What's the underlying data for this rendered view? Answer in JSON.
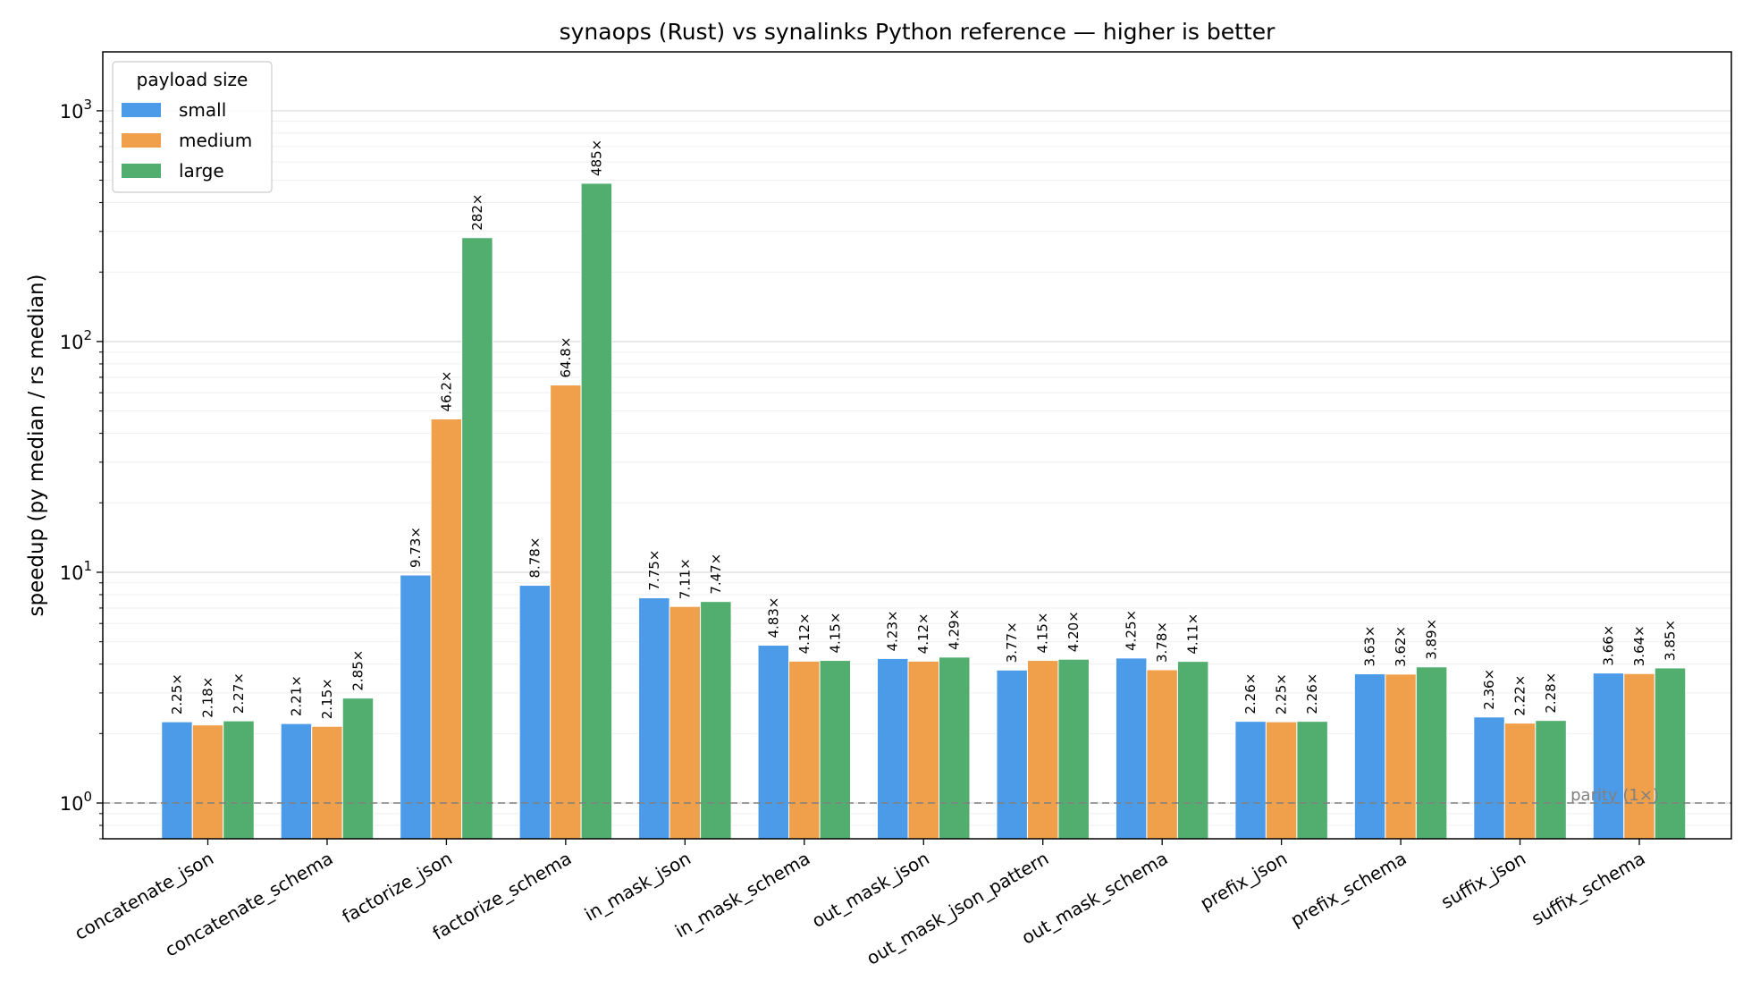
{
  "chart_data": {
    "type": "bar",
    "title": "synaops (Rust) vs synalinks Python reference — higher is better",
    "xlabel": "",
    "ylabel": "speedup  (py median / rs median)",
    "yscale": "log",
    "ylim": [
      0.7,
      1800
    ],
    "yticks": [
      {
        "base": "10",
        "exp": "0",
        "value": 1
      },
      {
        "base": "10",
        "exp": "1",
        "value": 10
      },
      {
        "base": "10",
        "exp": "2",
        "value": 100
      },
      {
        "base": "10",
        "exp": "3",
        "value": 1000
      }
    ],
    "categories": [
      "concatenate_json",
      "concatenate_schema",
      "factorize_json",
      "factorize_schema",
      "in_mask_json",
      "in_mask_schema",
      "out_mask_json",
      "out_mask_json_pattern",
      "out_mask_schema",
      "prefix_json",
      "prefix_schema",
      "suffix_json",
      "suffix_schema"
    ],
    "series": [
      {
        "name": "small",
        "color": "#4c9be8",
        "values": [
          2.25,
          2.21,
          9.73,
          8.78,
          7.75,
          4.83,
          4.23,
          3.77,
          4.25,
          2.26,
          3.63,
          2.36,
          3.66
        ],
        "labels": [
          "2.25×",
          "2.21×",
          "9.73×",
          "8.78×",
          "7.75×",
          "4.83×",
          "4.23×",
          "3.77×",
          "4.25×",
          "2.26×",
          "3.63×",
          "2.36×",
          "3.66×"
        ]
      },
      {
        "name": "medium",
        "color": "#f0a04b",
        "values": [
          2.18,
          2.15,
          46.2,
          64.8,
          7.11,
          4.12,
          4.12,
          4.15,
          3.78,
          2.25,
          3.62,
          2.22,
          3.64
        ],
        "labels": [
          "2.18×",
          "2.15×",
          "46.2×",
          "64.8×",
          "7.11×",
          "4.12×",
          "4.12×",
          "4.15×",
          "3.78×",
          "2.25×",
          "3.62×",
          "2.22×",
          "3.64×"
        ]
      },
      {
        "name": "large",
        "color": "#52ae6f",
        "values": [
          2.27,
          2.85,
          282,
          485,
          7.47,
          4.15,
          4.29,
          4.2,
          4.11,
          2.26,
          3.89,
          2.28,
          3.85
        ],
        "labels": [
          "2.27×",
          "2.85×",
          "282×",
          "485×",
          "7.47×",
          "4.15×",
          "4.29×",
          "4.20×",
          "4.11×",
          "2.26×",
          "3.89×",
          "2.28×",
          "3.85×"
        ]
      }
    ],
    "legend": {
      "title": "payload size",
      "position": "top-left"
    },
    "reference_line": {
      "value": 1,
      "label": "parity (1×)",
      "style": "dashed",
      "color": "#808080"
    },
    "grid": "y-major-and-minor"
  }
}
